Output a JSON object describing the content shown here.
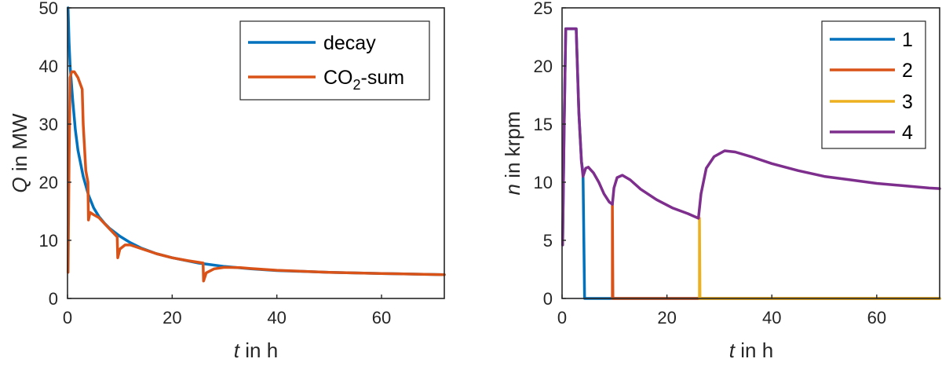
{
  "chart_data": [
    {
      "type": "line",
      "title": "",
      "xlabel_var": "t",
      "xlabel_rest": " in h",
      "ylabel_var": "Q",
      "ylabel_rest": " in MW",
      "xlim": [
        0,
        72
      ],
      "ylim": [
        0,
        50
      ],
      "xticks": [
        "0",
        "20",
        "40",
        "60"
      ],
      "xtick_values": [
        0,
        20,
        40,
        60
      ],
      "yticks": [
        "0",
        "10",
        "20",
        "30",
        "40",
        "50"
      ],
      "ytick_values": [
        0,
        10,
        20,
        30,
        40,
        50
      ],
      "grid": false,
      "legend_position": "top-right",
      "series": [
        {
          "name": "decay",
          "color": "#0072BD",
          "points": [
            [
              0.1,
              50
            ],
            [
              0.3,
              44
            ],
            [
              0.5,
              40
            ],
            [
              1,
              34
            ],
            [
              1.5,
              29
            ],
            [
              2,
              25.5
            ],
            [
              3,
              21
            ],
            [
              4,
              17.8
            ],
            [
              5,
              15.6
            ],
            [
              6,
              14.1
            ],
            [
              7,
              13
            ],
            [
              8,
              12.1
            ],
            [
              10,
              10.7
            ],
            [
              12,
              9.6
            ],
            [
              14,
              8.7
            ],
            [
              17,
              7.7
            ],
            [
              20,
              7
            ],
            [
              25,
              6.1
            ],
            [
              30,
              5.5
            ],
            [
              35,
              5.1
            ],
            [
              40,
              4.8
            ],
            [
              50,
              4.5
            ],
            [
              60,
              4.3
            ],
            [
              72,
              4.1
            ]
          ]
        },
        {
          "name": "CO₂-sum",
          "color": "#D95319",
          "points": [
            [
              0.1,
              4.5
            ],
            [
              0.3,
              24
            ],
            [
              0.5,
              38
            ],
            [
              0.8,
              39
            ],
            [
              1.3,
              39
            ],
            [
              2,
              38
            ],
            [
              2.8,
              36
            ],
            [
              3,
              30
            ],
            [
              3.5,
              22
            ],
            [
              3.9,
              20
            ],
            [
              4,
              13.5
            ],
            [
              4.3,
              14.8
            ],
            [
              5,
              14.4
            ],
            [
              6,
              13.9
            ],
            [
              8,
              12
            ],
            [
              9.5,
              10.6
            ],
            [
              9.6,
              7
            ],
            [
              10,
              8.5
            ],
            [
              11,
              9.2
            ],
            [
              12,
              9.2
            ],
            [
              14,
              8.6
            ],
            [
              17,
              7.7
            ],
            [
              20,
              7
            ],
            [
              23,
              6.5
            ],
            [
              25.9,
              6.1
            ],
            [
              26,
              3
            ],
            [
              26.5,
              4.4
            ],
            [
              28,
              5.1
            ],
            [
              30,
              5.35
            ],
            [
              33,
              5.3
            ],
            [
              35,
              5.15
            ],
            [
              40,
              4.85
            ],
            [
              50,
              4.5
            ],
            [
              60,
              4.3
            ],
            [
              72,
              4.1
            ]
          ]
        }
      ]
    },
    {
      "type": "line",
      "title": "",
      "xlabel_var": "t",
      "xlabel_rest": " in h",
      "ylabel_var": "n",
      "ylabel_rest": " in krpm",
      "xlim": [
        0,
        72
      ],
      "ylim": [
        0,
        25
      ],
      "xticks": [
        "0",
        "20",
        "40",
        "60"
      ],
      "xtick_values": [
        0,
        20,
        40,
        60
      ],
      "yticks": [
        "0",
        "5",
        "10",
        "15",
        "20",
        "25"
      ],
      "ytick_values": [
        0,
        5,
        10,
        15,
        20,
        25
      ],
      "grid": false,
      "legend_position": "top-right",
      "series": [
        {
          "name": "1",
          "color": "#0072BD",
          "points": [
            [
              0.1,
              4.6
            ],
            [
              0.4,
              15
            ],
            [
              0.7,
              23.2
            ],
            [
              2.7,
              23.2
            ],
            [
              3.2,
              16
            ],
            [
              3.7,
              11.8
            ],
            [
              4,
              10.8
            ],
            [
              4.3,
              0
            ],
            [
              72,
              0
            ]
          ]
        },
        {
          "name": "2",
          "color": "#D95319",
          "points": [
            [
              9.6,
              0
            ],
            [
              9.6,
              8.1
            ],
            [
              9.7,
              0
            ],
            [
              72,
              0
            ]
          ]
        },
        {
          "name": "3",
          "color": "#EDB120",
          "points": [
            [
              26.2,
              0
            ],
            [
              26.2,
              6.9
            ],
            [
              26.3,
              0
            ],
            [
              72,
              0
            ]
          ]
        },
        {
          "name": "4",
          "color": "#7E2F8E",
          "points": [
            [
              0.1,
              4.6
            ],
            [
              0.4,
              15
            ],
            [
              0.7,
              23.2
            ],
            [
              2.7,
              23.2
            ],
            [
              3.2,
              16
            ],
            [
              3.7,
              11.8
            ],
            [
              4,
              10.5
            ],
            [
              4.5,
              11.2
            ],
            [
              5,
              11.3
            ],
            [
              6,
              10.8
            ],
            [
              7,
              10
            ],
            [
              8,
              9
            ],
            [
              9,
              8.3
            ],
            [
              9.6,
              8.1
            ],
            [
              9.9,
              9.5
            ],
            [
              10.5,
              10.4
            ],
            [
              11.5,
              10.6
            ],
            [
              13,
              10.2
            ],
            [
              15,
              9.4
            ],
            [
              18,
              8.5
            ],
            [
              21,
              7.8
            ],
            [
              24,
              7.3
            ],
            [
              26,
              6.9
            ],
            [
              26.5,
              9
            ],
            [
              27.5,
              11.2
            ],
            [
              29,
              12.2
            ],
            [
              31,
              12.7
            ],
            [
              33,
              12.6
            ],
            [
              36,
              12.2
            ],
            [
              40,
              11.6
            ],
            [
              45,
              11
            ],
            [
              50,
              10.5
            ],
            [
              55,
              10.2
            ],
            [
              60,
              9.9
            ],
            [
              65,
              9.7
            ],
            [
              70,
              9.5
            ],
            [
              72,
              9.45
            ]
          ]
        }
      ]
    }
  ]
}
